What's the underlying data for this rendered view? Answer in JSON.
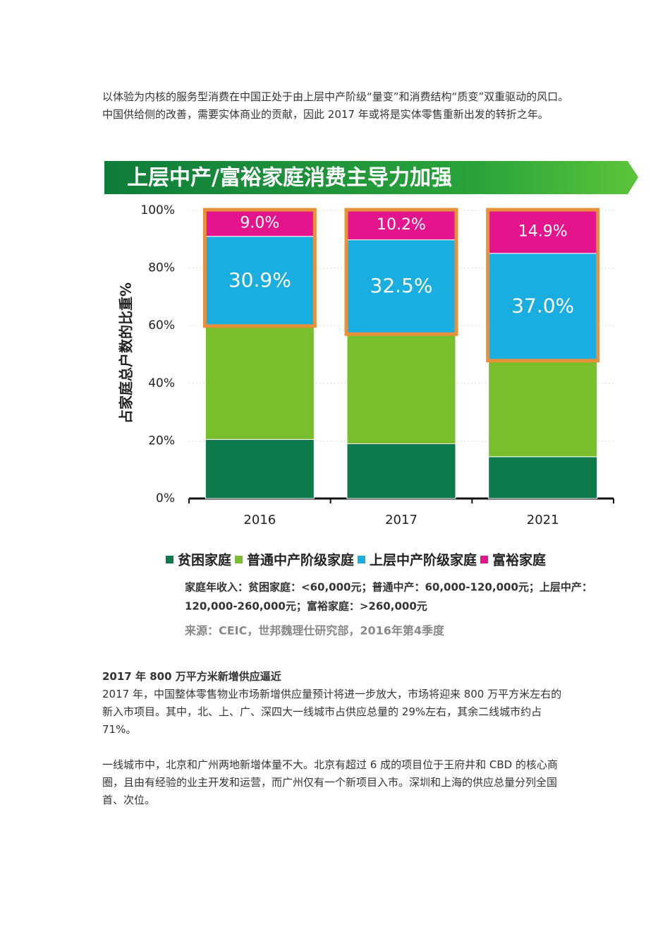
{
  "intro": "以体验为内核的服务型消费在中国正处于由上层中产阶级“量变”和消费结构“质变”双重驱动的风口。中国供给侧的改善，需要实体商业的贡献，因此 2017 年或将是实体零售重新出发的转折之年。",
  "chart_data": {
    "type": "stacked_bar",
    "title": "上层中产/富裕家庭消费主导力加强",
    "y_label": "占家庭总户数的比重%",
    "categories": [
      "2016",
      "2017",
      "2021"
    ],
    "series": [
      {
        "name": "贫困家庭",
        "color": "#0e7a4c",
        "values": [
          20.5,
          19,
          14.5
        ]
      },
      {
        "name": "普通中产阶级家庭",
        "color": "#79bf2d",
        "values": [
          39.6,
          38.3,
          33.6
        ]
      },
      {
        "name": "上层中产阶级家庭",
        "color": "#1aaee0",
        "values": [
          30.9,
          32.5,
          37.0
        ],
        "value_labels": [
          "30.9%",
          "32.5%",
          "37.0%"
        ]
      },
      {
        "name": "富裕家庭",
        "color": "#e4148c",
        "values": [
          9.0,
          10.2,
          14.9
        ],
        "value_labels": [
          "9.0%",
          "10.2%",
          "14.9%"
        ]
      }
    ],
    "ylim": [
      0,
      100
    ],
    "yticks": [
      {
        "value": 0,
        "label": "0%"
      },
      {
        "value": 20,
        "label": "20%"
      },
      {
        "value": 40,
        "label": "40%"
      },
      {
        "value": 60,
        "label": "60%"
      },
      {
        "value": 80,
        "label": "80%"
      },
      {
        "value": 100,
        "label": "100%"
      }
    ],
    "grid": true,
    "note": [
      "家庭年收入：贫困家庭：<60,000元；普通中产：60,000-120,000元；上层中产：",
      "120,000-260,000元；富裕家庭：>260,000元"
    ],
    "source": "来源：CEIC，世邦魏理仕研究部，2016年第4季度"
  },
  "section": {
    "heading": "2017 年 800 万平方米新增供应逼近",
    "paragraphs": [
      "2017 年，中国整体零售物业市场新增供应量预计将进一步放大，市场将迎来 800 万平方米左右的新入市项目。其中，北、上、广、深四大一线城市占供应总量的 29%左右，其余二线城市约占 71%。",
      "一线城市中，北京和广州两地新增体量不大。北京有超过 6 成的项目位于王府井和 CBD 的核心商圈，且由有经验的业主开发和运营，而广州仅有一个新项目入市。深圳和上海的供应总量分列全国首、次位。"
    ]
  }
}
